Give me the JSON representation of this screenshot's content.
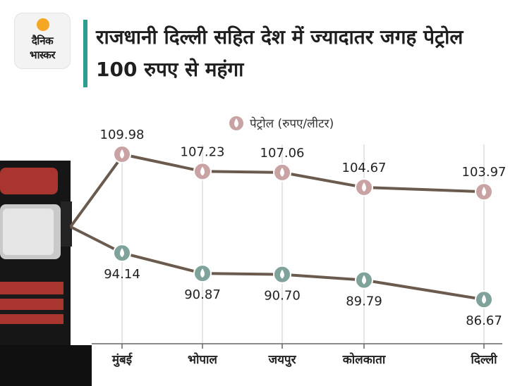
{
  "logo": {
    "line1": "दैनिक",
    "line2": "भास्कर"
  },
  "title": "राजधानी दिल्ली सहित देश में ज्यादातर जगह पेट्रोल 100 रुपए से महंगा",
  "colors": {
    "accent": "#2c9d8f",
    "petrol_marker": "#c9a3a3",
    "diesel_marker": "#7fa39a",
    "line": "#6b5a4e"
  },
  "chart_data": {
    "type": "line",
    "categories": [
      "मुंबई",
      "भोपाल",
      "जयपुर",
      "कोलकाता",
      "दिल्ली"
    ],
    "series": [
      {
        "name": "पेट्रोल (रुपए/लीटर)",
        "values": [
          109.98,
          107.23,
          107.06,
          104.67,
          103.97
        ]
      },
      {
        "name": "",
        "values": [
          94.14,
          90.87,
          90.7,
          89.79,
          86.67
        ]
      }
    ],
    "value_labels": [
      [
        "109.98",
        "107.23",
        "107.06",
        "104.67",
        "103.97"
      ],
      [
        "94.14",
        "90.87",
        "90.70",
        "89.79",
        "86.67"
      ]
    ],
    "legend": "top-center",
    "grid": "vertical"
  }
}
